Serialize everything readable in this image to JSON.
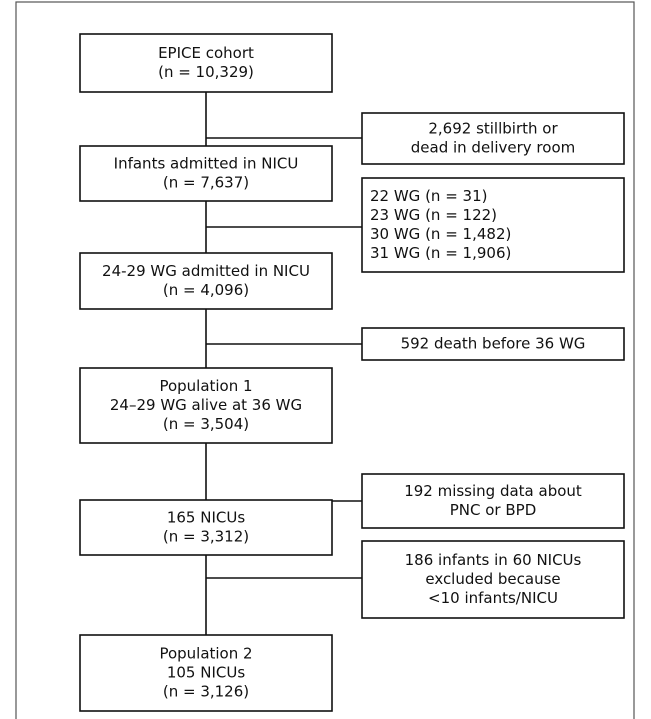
{
  "nodes": [
    {
      "lines": [
        "EPICE cohort",
        "(n = 10,329)"
      ]
    },
    {
      "lines": [
        "Infants admitted in NICU",
        "(n = 7,637)"
      ]
    },
    {
      "lines": [
        "24-29 WG admitted in NICU",
        "(n = 4,096)"
      ]
    },
    {
      "lines": [
        "Population 1",
        "24–29 WG alive at 36 WG",
        "(n = 3,504)"
      ]
    },
    {
      "lines": [
        "165 NICUs",
        "(n = 3,312)"
      ]
    },
    {
      "lines": [
        "Population 2",
        "105 NICUs",
        "(n = 3,126)"
      ]
    }
  ],
  "exclusions": [
    {
      "lines": [
        "2,692 stillbirth or",
        "dead in delivery room"
      ]
    },
    {
      "lines": [
        "22 WG (n = 31)",
        "23 WG (n = 122)",
        "30 WG (n = 1,482)",
        "31 WG (n = 1,906)"
      ]
    },
    {
      "lines": [
        "592 death before 36 WG"
      ]
    },
    {
      "lines": [
        "192 missing data about",
        "PNC or BPD"
      ]
    },
    {
      "lines": [
        "186 infants in 60 NICUs",
        "excluded because",
        "<10 infants/NICU"
      ]
    }
  ]
}
